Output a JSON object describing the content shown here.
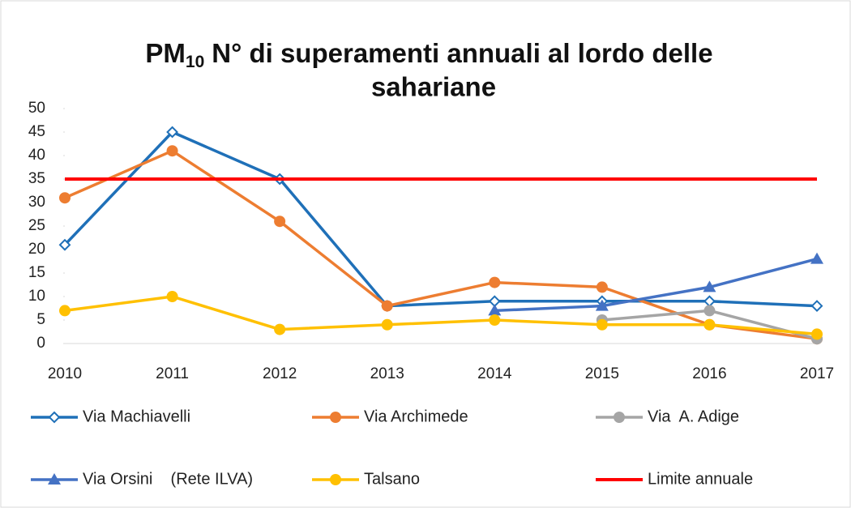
{
  "chart_data": {
    "type": "line",
    "title": {
      "main": "PM",
      "subscript": "10",
      "lines": [
        "N° di superamenti annuali al lordo delle",
        "sahariane"
      ]
    },
    "categories": [
      "2010",
      "2011",
      "2012",
      "2013",
      "2014",
      "2015",
      "2016",
      "2017"
    ],
    "ylim": [
      0,
      50
    ],
    "yticks": [
      0,
      5,
      10,
      15,
      20,
      25,
      30,
      35,
      40,
      45,
      50
    ],
    "grid": false,
    "series": [
      {
        "name": "Via Machiavelli",
        "color": "#1f70b8",
        "marker": "diamond-open",
        "values": [
          21,
          45,
          35,
          8,
          9,
          9,
          9,
          8
        ]
      },
      {
        "name": "Via Archimede",
        "color": "#ed7d31",
        "marker": "circle",
        "values": [
          31,
          41,
          26,
          8,
          13,
          12,
          4,
          1
        ]
      },
      {
        "name": "Via  A. Adige",
        "color": "#a5a5a5",
        "marker": "circle",
        "values": [
          null,
          null,
          null,
          null,
          null,
          5,
          7,
          1
        ]
      },
      {
        "name": "Via Orsini    (Rete ILVA)",
        "color": "#4472c4",
        "marker": "triangle",
        "values": [
          null,
          null,
          null,
          null,
          7,
          8,
          12,
          18
        ]
      },
      {
        "name": "Talsano",
        "color": "#ffc000",
        "marker": "circle",
        "values": [
          7,
          10,
          3,
          4,
          5,
          4,
          4,
          2
        ]
      },
      {
        "name": "Limite annuale",
        "color": "#ff0000",
        "marker": "none",
        "values": [
          35,
          35,
          35,
          35,
          35,
          35,
          35,
          35
        ]
      }
    ]
  }
}
